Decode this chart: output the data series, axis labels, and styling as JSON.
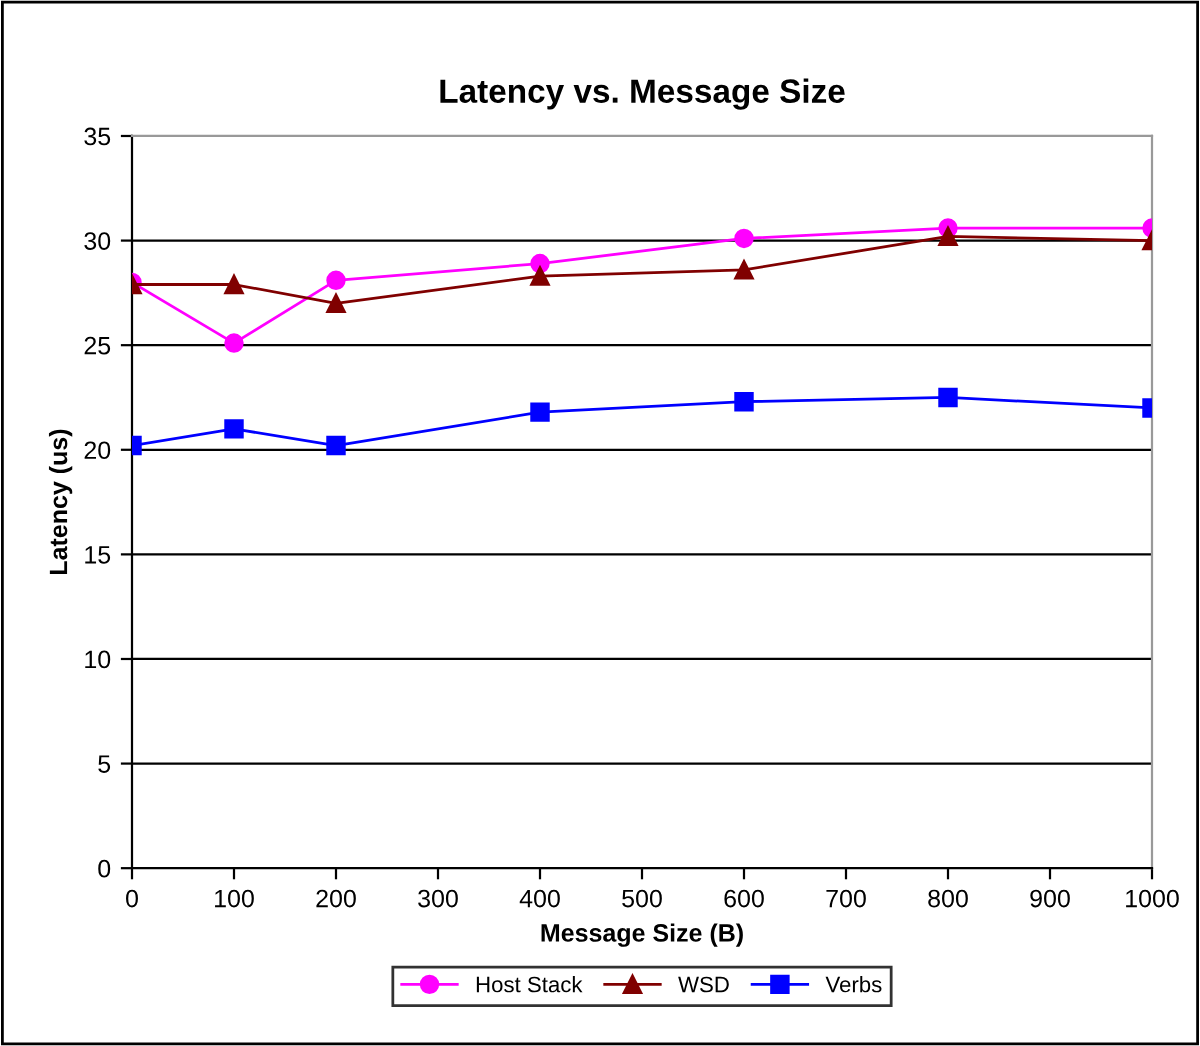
{
  "chart_data": {
    "type": "line",
    "title": "Latency vs. Message Size",
    "xlabel": "Message Size (B)",
    "ylabel": "Latency (us)",
    "x": [
      0,
      100,
      200,
      400,
      600,
      800,
      1000
    ],
    "series": [
      {
        "name": "Host Stack",
        "color": "#ff00ff",
        "marker": "circle",
        "values": [
          28.0,
          25.1,
          28.1,
          28.9,
          30.1,
          30.6,
          30.6
        ]
      },
      {
        "name": "WSD",
        "color": "#800000",
        "marker": "triangle",
        "values": [
          27.9,
          27.9,
          27.0,
          28.3,
          28.6,
          30.2,
          30.0
        ]
      },
      {
        "name": "Verbs",
        "color": "#0000ff",
        "marker": "square",
        "values": [
          20.2,
          21.0,
          20.2,
          21.8,
          22.3,
          22.5,
          22.0
        ]
      }
    ],
    "xlim": [
      0,
      1000
    ],
    "xticks": [
      0,
      100,
      200,
      300,
      400,
      500,
      600,
      700,
      800,
      900,
      1000
    ],
    "ylim": [
      0,
      35
    ],
    "yticks": [
      0,
      5,
      10,
      15,
      20,
      25,
      30,
      35
    ],
    "grid": "y",
    "legend": "bottom"
  }
}
